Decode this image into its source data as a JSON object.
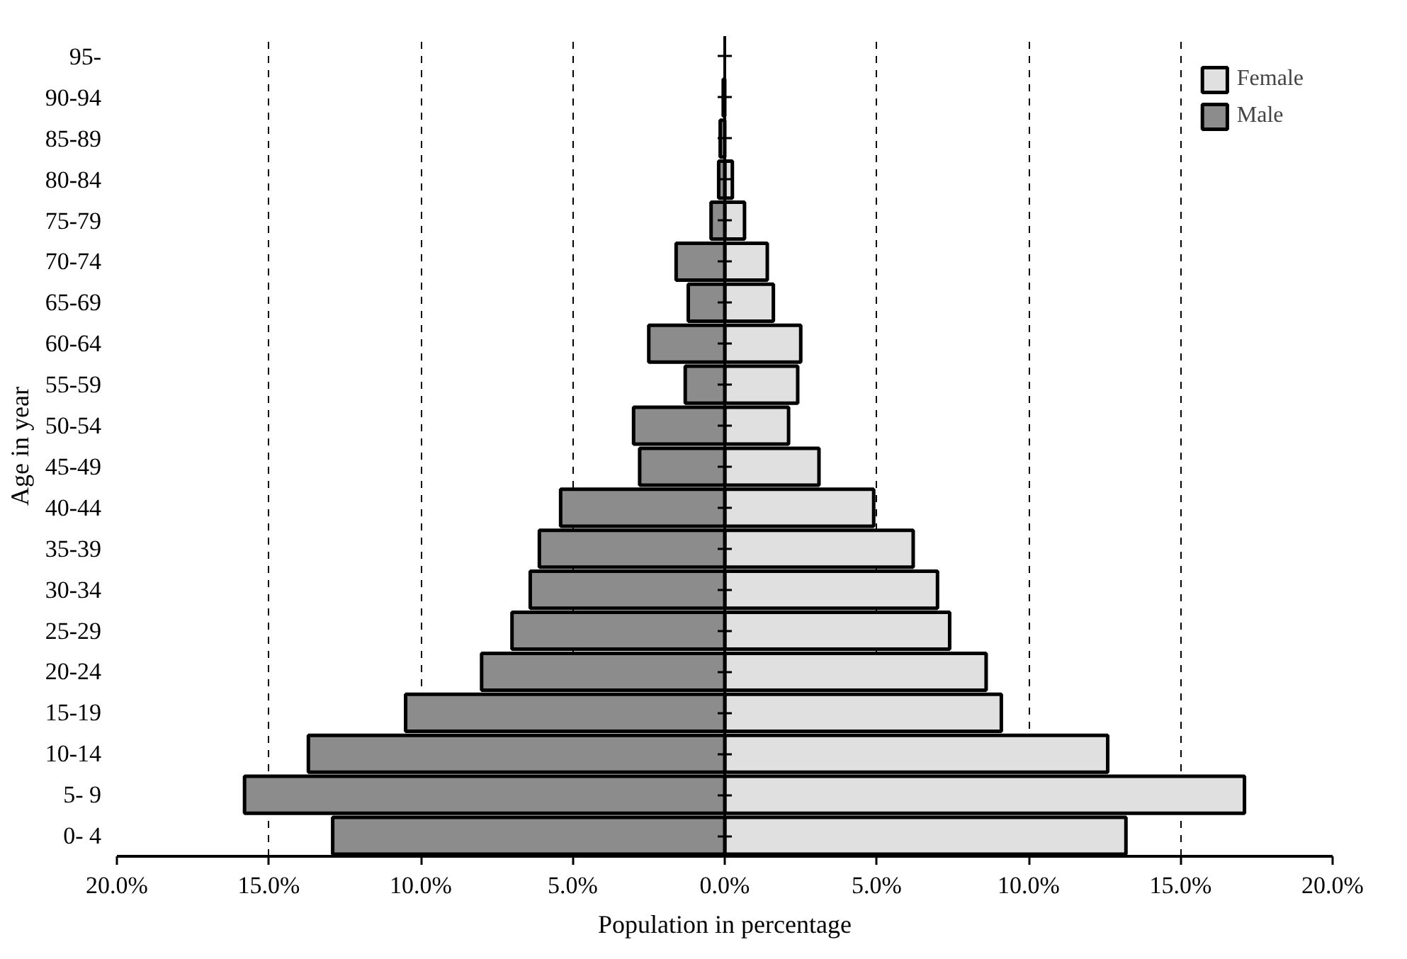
{
  "chart_data": {
    "type": "bar",
    "orientation": "horizontal",
    "stacked": true,
    "xlabel": "Population in percentage",
    "ylabel": "Age in year",
    "categories": [
      "95-",
      "90-94",
      "85-89",
      "80-84",
      "75-79",
      "70-74",
      "65-69",
      "60-64",
      "55-59",
      "50-54",
      "45-49",
      "40-44",
      "35-39",
      "30-34",
      "25-29",
      "20-24",
      "15-19",
      "10-14",
      "5- 9",
      "0- 4"
    ],
    "series": [
      {
        "name": "Female",
        "color": "#e0e0e0",
        "values": [
          0,
          null,
          null,
          0.25,
          0.65,
          1.4,
          1.6,
          2.5,
          2.4,
          2.1,
          3.1,
          4.9,
          6.2,
          7.0,
          7.4,
          8.6,
          9.1,
          12.6,
          17.1,
          13.2
        ]
      },
      {
        "name": "Male",
        "color": "#8c8c8c",
        "values": [
          0,
          -0.05,
          -0.15,
          -0.2,
          -0.45,
          -1.6,
          -1.2,
          -2.5,
          -1.3,
          -3.0,
          -2.8,
          -5.4,
          -6.1,
          -6.4,
          -7.0,
          -8.0,
          -10.5,
          -13.7,
          -15.8,
          -12.9
        ]
      }
    ],
    "xlim": [
      -20,
      20
    ],
    "xticks": [
      {
        "value": -20,
        "label": "20.0%"
      },
      {
        "value": -15,
        "label": "15.0%"
      },
      {
        "value": -10,
        "label": "10.0%"
      },
      {
        "value": -5,
        "label": "5.0%"
      },
      {
        "value": 0,
        "label": "0.0%"
      },
      {
        "value": 5,
        "label": "5.0%"
      },
      {
        "value": 10,
        "label": "10.0%"
      },
      {
        "value": 15,
        "label": "15.0%"
      },
      {
        "value": 20,
        "label": "20.0%"
      }
    ],
    "grid": "x",
    "legend": "top right"
  }
}
